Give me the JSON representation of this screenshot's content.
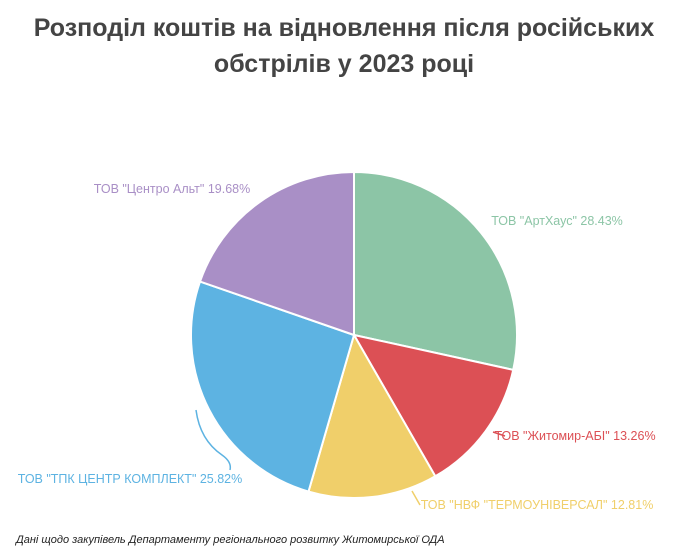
{
  "title": {
    "line1": "Розподіл коштів на відновлення після російських",
    "line2": "обстрілів у 2023 році"
  },
  "source_note": "Дані щодо закупівель Департаменту регіонального розвитку Житомирської ОДА",
  "chart_data": {
    "type": "pie",
    "title": "Розподіл коштів на відновлення після російських обстрілів у 2023 році",
    "slices": [
      {
        "name": "ТОВ \"АртХаус\"",
        "value": 28.43,
        "label": "ТОВ \"АртХаус\" 28.43%",
        "color": "#8cc5a6"
      },
      {
        "name": "ТОВ \"Житомир-АБІ\"",
        "value": 13.26,
        "label": "ТОВ \"Житомир-АБІ\" 13.26%",
        "color": "#dc5055"
      },
      {
        "name": "ТОВ \"НВФ \"ТЕРМОУНІВЕРСАЛ\"",
        "value": 12.81,
        "label": "ТОВ \"НВФ \"ТЕРМОУНІВЕРСАЛ\" 12.81%",
        "color": "#f0cf6a"
      },
      {
        "name": "ТОВ \"ТПК ЦЕНТР КОМПЛЕКТ\"",
        "value": 25.82,
        "label": "ТОВ \"ТПК ЦЕНТР КОМПЛЕКТ\" 25.82%",
        "color": "#5db3e2"
      },
      {
        "name": "ТОВ \"Центро Альт\"",
        "value": 19.68,
        "label": "ТОВ \"Центро Альт\" 19.68%",
        "color": "#a98fc6"
      }
    ],
    "start_angle": "top",
    "direction": "clockwise",
    "legend": "none"
  }
}
